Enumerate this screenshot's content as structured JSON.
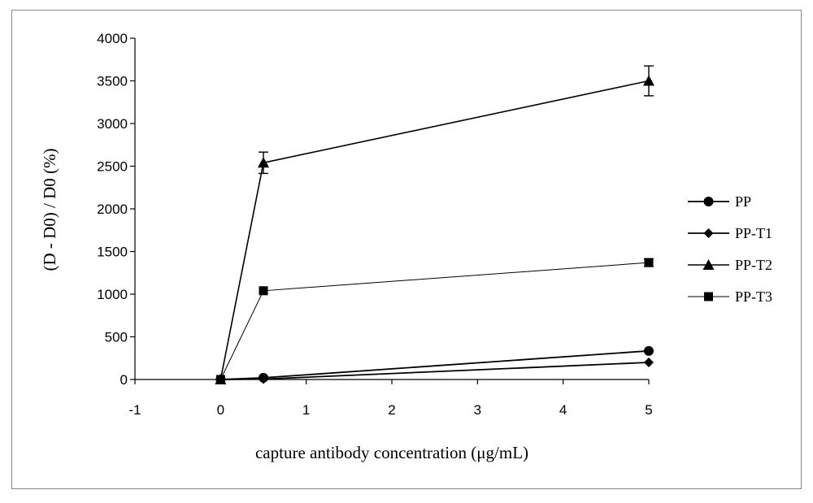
{
  "chart_data": {
    "type": "line",
    "title": "",
    "xlabel": "capture antibody concentration (μg/mL)",
    "ylabel": "(D - D0) / D0 (%)",
    "xlim": [
      -1,
      5
    ],
    "ylim": [
      0,
      4000
    ],
    "xticks": [
      -1,
      0,
      1,
      2,
      3,
      4,
      5
    ],
    "yticks": [
      0,
      500,
      1000,
      1500,
      2000,
      2500,
      3000,
      3500,
      4000
    ],
    "grid": false,
    "legend_position": "right",
    "series": [
      {
        "name": "PP",
        "marker": "circle",
        "color": "#000000",
        "x": [
          0,
          0.5,
          5
        ],
        "y": [
          0,
          20,
          335
        ],
        "error": [
          0,
          0,
          0
        ]
      },
      {
        "name": "PP-T1",
        "marker": "diamond",
        "color": "#000000",
        "x": [
          0,
          0.5,
          5
        ],
        "y": [
          0,
          5,
          200
        ],
        "error": [
          0,
          0,
          0
        ]
      },
      {
        "name": "PP-T2",
        "marker": "triangle",
        "color": "#000000",
        "x": [
          0,
          0.5,
          5
        ],
        "y": [
          0,
          2540,
          3500
        ],
        "error": [
          0,
          125,
          175
        ]
      },
      {
        "name": "PP-T3",
        "marker": "square",
        "color": "#000000",
        "x": [
          0,
          0.5,
          5
        ],
        "y": [
          0,
          1040,
          1370
        ],
        "error": [
          0,
          0,
          45
        ]
      }
    ]
  }
}
